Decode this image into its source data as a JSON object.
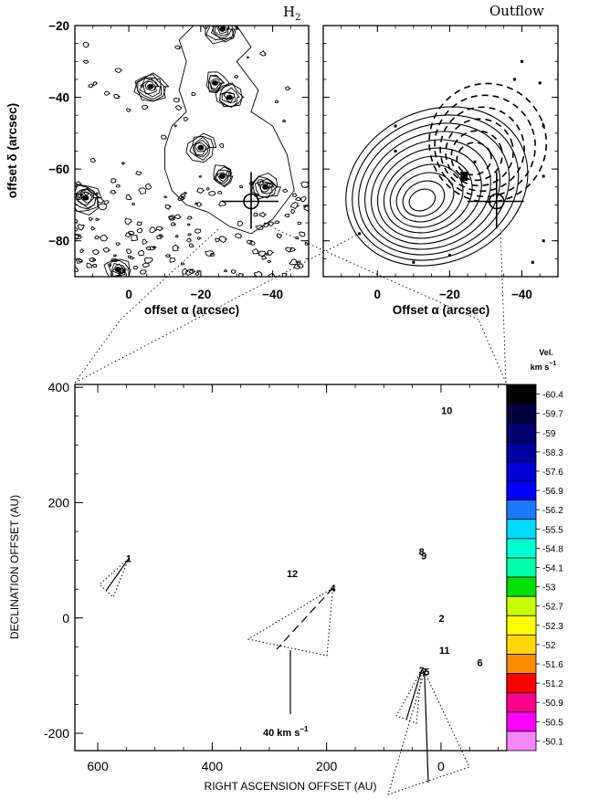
{
  "chart_data": [
    {
      "type": "contour",
      "title": "H",
      "title_sub": "2",
      "ylabel": "offset δ (arcsec)",
      "xlabel": "offset α (arcsec)",
      "xlim": [
        15,
        -50
      ],
      "ylim": [
        -90,
        -20
      ],
      "xticks": [
        {
          "value": 0,
          "label": "0"
        },
        {
          "value": -20,
          "label": "−20"
        },
        {
          "value": -40,
          "label": "−40"
        }
      ],
      "yticks": [
        {
          "value": -20,
          "label": "−20"
        },
        {
          "value": -40,
          "label": "−40"
        },
        {
          "value": -60,
          "label": "−60"
        },
        {
          "value": -80,
          "label": "−80"
        }
      ],
      "sources": [
        {
          "x": -34,
          "y": -69
        }
      ],
      "knots": [
        {
          "x": -24,
          "y": -36
        },
        {
          "x": -28,
          "y": -40
        },
        {
          "x": -6,
          "y": -37
        },
        {
          "x": -26,
          "y": -62
        },
        {
          "x": -20,
          "y": -54
        },
        {
          "x": 12,
          "y": -68
        },
        {
          "x": 3,
          "y": -88
        },
        {
          "x": -38,
          "y": -65
        },
        {
          "x": -26,
          "y": -21
        }
      ]
    },
    {
      "type": "contour",
      "title": "Outflow",
      "xlabel": "Offset α (arcsec)",
      "xlim": [
        15,
        -50
      ],
      "ylim": [
        -90,
        -20
      ],
      "xticks": [
        {
          "value": 0,
          "label": "0"
        },
        {
          "value": -20,
          "label": "−20"
        },
        {
          "value": -40,
          "label": "−40"
        }
      ],
      "sources": [
        {
          "x": -33,
          "y": -69
        }
      ],
      "blue_lobe": {
        "center": [
          -12,
          -69
        ],
        "levels": 11
      },
      "red_lobe": {
        "center": [
          -26,
          -58
        ],
        "levels": 6
      }
    },
    {
      "type": "scatter",
      "xlabel": "RIGHT ASCENSION OFFSET (AU)",
      "ylabel": "DECLINATION OFFSET (AU)",
      "xlim": [
        640,
        -115
      ],
      "ylim": [
        -230,
        405
      ],
      "xticks": [
        600,
        400,
        200,
        0
      ],
      "yticks": [
        400,
        200,
        0,
        -200
      ],
      "scale_bar": {
        "label": "40   km s",
        "unit_exp": "−1"
      },
      "points": [
        {
          "label": "1",
          "x": 546,
          "y": 103,
          "vel": -50.9
        },
        {
          "label": "2",
          "x": -1,
          "y": 0,
          "vel": -55.5
        },
        {
          "label": "3",
          "x": 34,
          "y": -91,
          "vel": -55.5
        },
        {
          "label": "4",
          "x": 189,
          "y": 52,
          "vel": -50.5
        },
        {
          "label": "5",
          "x": 25,
          "y": -93,
          "vel": -57.6
        },
        {
          "label": "6",
          "x": -68,
          "y": -77,
          "vel": -55.5
        },
        {
          "label": "7",
          "x": 29,
          "y": -93,
          "vel": -58.3
        },
        {
          "label": "8",
          "x": 34,
          "y": 115,
          "vel": -55.5
        },
        {
          "label": "9",
          "x": 30,
          "y": 108,
          "vel": -52.3
        },
        {
          "label": "10",
          "x": -10,
          "y": 360,
          "vel": -53
        },
        {
          "label": "11",
          "x": -6,
          "y": -56,
          "vel": -53
        },
        {
          "label": "12",
          "x": 260,
          "y": 77,
          "vel": -60.4
        }
      ],
      "colorbar": {
        "title": "Vel.",
        "unit": "km s",
        "unit_exp": "−1",
        "levels": [
          {
            "label": "-60.4",
            "color": "#000000"
          },
          {
            "label": "-59.7",
            "color": "#00003c"
          },
          {
            "label": "-59",
            "color": "#00006e"
          },
          {
            "label": "-58.3",
            "color": "#0000a0"
          },
          {
            "label": "-57.6",
            "color": "#0000d2"
          },
          {
            "label": "-56.9",
            "color": "#0000ff"
          },
          {
            "label": "-56.2",
            "color": "#1e78ff"
          },
          {
            "label": "-55.5",
            "color": "#00dcff"
          },
          {
            "label": "-54.8",
            "color": "#00ffd2"
          },
          {
            "label": "-54.1",
            "color": "#00ffaa"
          },
          {
            "label": "-53",
            "color": "#00e000"
          },
          {
            "label": "-52.7",
            "color": "#c8ff00"
          },
          {
            "label": "-52.3",
            "color": "#ffff00"
          },
          {
            "label": "-52",
            "color": "#ffd700"
          },
          {
            "label": "-51.6",
            "color": "#ff8c00"
          },
          {
            "label": "-51.2",
            "color": "#ff0000"
          },
          {
            "label": "-50.9",
            "color": "#ff008c"
          },
          {
            "label": "-50.5",
            "color": "#ff00ff"
          },
          {
            "label": "-50.1",
            "color": "#f586f5"
          }
        ]
      }
    }
  ]
}
